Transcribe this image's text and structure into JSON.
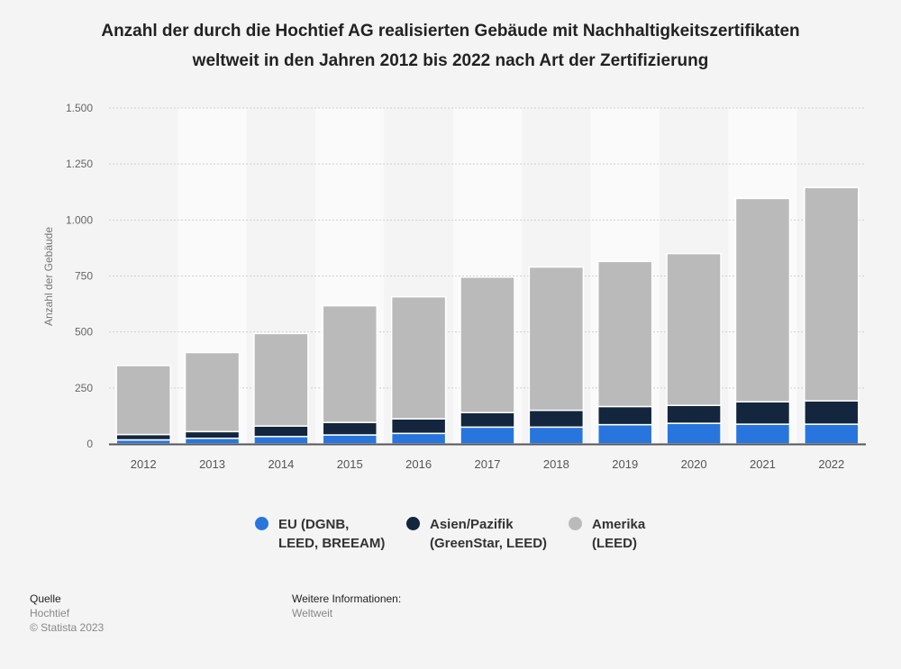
{
  "title": "Anzahl der durch die Hochtief AG realisierten Gebäude mit Nachhaltigkeitszertifikaten weltweit in den Jahren 2012 bis 2022 nach Art der Zertifizierung",
  "title_line1": "Anzahl der durch die Hochtief AG realisierten Gebäude mit Nachhaltigkeitszertifikaten",
  "title_line2": "weltweit in den Jahren 2012 bis 2022 nach Art der Zertifizierung",
  "chart_data": {
    "type": "bar",
    "stacked": true,
    "title": "Anzahl der durch die Hochtief AG realisierten Gebäude mit Nachhaltigkeitszertifikaten weltweit in den Jahren 2012 bis 2022 nach Art der Zertifizierung",
    "xlabel": "",
    "ylabel": "Anzahl der Gebäude",
    "ylim": [
      0,
      1500
    ],
    "yticks": [
      0,
      250,
      500,
      750,
      1000,
      1250,
      1500
    ],
    "ytick_labels": [
      "0",
      "250",
      "500",
      "750",
      "1.000",
      "1.250",
      "1.500"
    ],
    "grid": true,
    "legend_position": "bottom",
    "categories": [
      "2012",
      "2013",
      "2014",
      "2015",
      "2016",
      "2017",
      "2018",
      "2019",
      "2020",
      "2021",
      "2022"
    ],
    "series": [
      {
        "name": "EU (DGNB, LEED, BREEAM)",
        "color": "#2876dd",
        "values": [
          18,
          25,
          33,
          40,
          47,
          75,
          75,
          86,
          92,
          88,
          88
        ]
      },
      {
        "name": "Asien/Pazifik (GreenStar, LEED)",
        "color": "#13263d",
        "values": [
          24,
          30,
          47,
          56,
          65,
          65,
          75,
          81,
          80,
          100,
          104
        ]
      },
      {
        "name": "Amerika (LEED)",
        "color": "#bababa",
        "values": [
          308,
          353,
          413,
          521,
          545,
          605,
          640,
          648,
          678,
          908,
          953
        ]
      }
    ]
  },
  "legend": [
    {
      "label": "EU (DGNB,\nLEED, BREEAM)",
      "color": "#2876dd"
    },
    {
      "label": "Asien/Pazifik\n(GreenStar, LEED)",
      "color": "#13263d"
    },
    {
      "label": "Amerika\n(LEED)",
      "color": "#bababa"
    }
  ],
  "footer": {
    "source_heading": "Quelle",
    "source_value": "Hochtief",
    "copyright": "© Statista 2023",
    "info_heading": "Weitere Informationen:",
    "info_value": "Weltweit"
  }
}
